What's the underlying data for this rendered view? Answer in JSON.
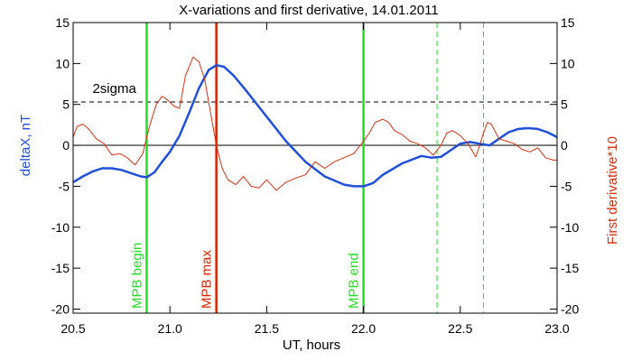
{
  "chart_data": {
    "type": "line",
    "title": "X-variations and first derivative, 14.01.2011",
    "xlabel": "UT, hours",
    "ylabel_left": "deltaX, nT",
    "ylabel_right": "First derivative*10",
    "xlim": [
      20.5,
      23.0
    ],
    "ylim": [
      -20.5,
      15
    ],
    "x_ticks": [
      20.5,
      21.0,
      21.5,
      22.0,
      22.5,
      23.0
    ],
    "x_tick_labels": [
      "20.5",
      "21.0",
      "21.5",
      "22.0",
      "22.5",
      "23.0"
    ],
    "y_ticks": [
      15,
      10,
      5,
      0,
      -5,
      -10,
      -15,
      -20
    ],
    "y_tick_labels": [
      "15",
      "10",
      "5",
      "0",
      "-5",
      "-10",
      "-15",
      "-20"
    ],
    "grid": false,
    "colors": {
      "deltaX": "#1f4fd8",
      "derivative": "#d83010",
      "mpb_begin_end": "#22dd22",
      "mpb_max": "#dd2200",
      "dashed_green": "#22dd22",
      "sigma": "#000000"
    },
    "sigma_level": 5.3,
    "sigma_label": "2sigma",
    "vertical_markers": [
      {
        "x": 20.88,
        "label": "MPB begin",
        "style": "solid",
        "color": "#22dd22"
      },
      {
        "x": 21.24,
        "label": "MPB max",
        "style": "solid",
        "color": "#dd2200"
      },
      {
        "x": 22.0,
        "label": "MPB end",
        "style": "solid",
        "color": "#22dd22"
      },
      {
        "x": 22.38,
        "label": "",
        "style": "dashed",
        "color": "#22dd22"
      },
      {
        "x": 22.62,
        "label": "",
        "style": "dashed",
        "color": "#22dd22"
      }
    ],
    "series": [
      {
        "key": "deltaX",
        "axis": "left",
        "x": [
          20.5,
          20.55,
          20.6,
          20.65,
          20.7,
          20.75,
          20.8,
          20.85,
          20.88,
          20.92,
          20.96,
          21.0,
          21.05,
          21.1,
          21.15,
          21.2,
          21.24,
          21.28,
          21.33,
          21.4,
          21.5,
          21.6,
          21.7,
          21.8,
          21.9,
          21.95,
          22.0,
          22.05,
          22.1,
          22.2,
          22.3,
          22.35,
          22.4,
          22.45,
          22.5,
          22.55,
          22.6,
          22.65,
          22.7,
          22.75,
          22.8,
          22.85,
          22.9,
          22.95,
          23.0
        ],
        "y": [
          -4.5,
          -3.8,
          -3.2,
          -2.8,
          -2.8,
          -3.0,
          -3.4,
          -3.8,
          -3.9,
          -3.3,
          -2.0,
          -0.8,
          1.2,
          4.0,
          7.0,
          9.2,
          9.8,
          9.6,
          8.5,
          6.5,
          3.5,
          0.5,
          -2.0,
          -3.8,
          -4.8,
          -5.0,
          -5.0,
          -4.6,
          -3.6,
          -2.2,
          -1.3,
          -1.5,
          -1.4,
          -0.6,
          0.2,
          0.4,
          0.2,
          0.0,
          0.8,
          1.6,
          2.0,
          2.1,
          2.0,
          1.6,
          1.0
        ]
      },
      {
        "key": "derivative",
        "axis": "right",
        "x": [
          20.5,
          20.52,
          20.55,
          20.58,
          20.62,
          20.66,
          20.7,
          20.74,
          20.78,
          20.82,
          20.86,
          20.88,
          20.9,
          20.93,
          20.96,
          20.99,
          21.02,
          21.05,
          21.08,
          21.12,
          21.15,
          21.18,
          21.21,
          21.24,
          21.27,
          21.3,
          21.34,
          21.38,
          21.42,
          21.46,
          21.5,
          21.55,
          21.6,
          21.65,
          21.7,
          21.75,
          21.8,
          21.85,
          21.9,
          21.95,
          22.0,
          22.03,
          22.06,
          22.1,
          22.13,
          22.16,
          22.2,
          22.24,
          22.28,
          22.32,
          22.36,
          22.4,
          22.43,
          22.46,
          22.5,
          22.54,
          22.58,
          22.6,
          22.62,
          22.64,
          22.66,
          22.7,
          22.74,
          22.78,
          22.82,
          22.86,
          22.9,
          22.94,
          22.98,
          23.0
        ],
        "y": [
          1.0,
          2.3,
          2.6,
          2.0,
          0.8,
          0.2,
          -1.2,
          -1.0,
          -1.5,
          -2.4,
          -1.0,
          1.0,
          2.8,
          5.0,
          6.0,
          5.5,
          4.8,
          4.5,
          8.5,
          10.8,
          10.2,
          8.0,
          4.0,
          0.0,
          -2.8,
          -4.2,
          -4.8,
          -3.8,
          -5.0,
          -5.2,
          -4.2,
          -5.5,
          -4.5,
          -4.0,
          -3.6,
          -2.0,
          -2.8,
          -2.0,
          -1.5,
          -1.0,
          0.5,
          1.5,
          2.8,
          3.2,
          2.8,
          1.8,
          1.3,
          0.5,
          0.2,
          -0.3,
          -1.2,
          0.0,
          1.5,
          1.8,
          1.2,
          0.2,
          -1.4,
          0.0,
          1.5,
          2.8,
          2.6,
          0.8,
          0.5,
          0.2,
          -0.5,
          -0.8,
          -0.3,
          -1.5,
          -1.8,
          -1.8
        ]
      }
    ]
  }
}
